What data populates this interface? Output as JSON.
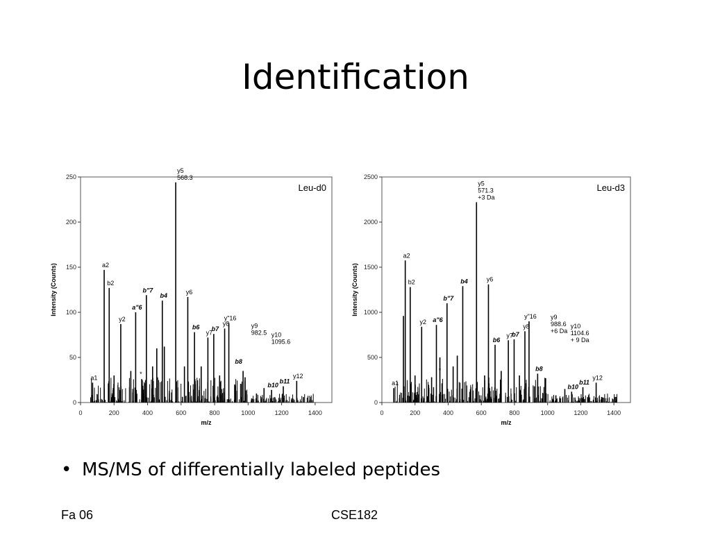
{
  "slide": {
    "title": "Identification",
    "bullet": "MS/MS of differentially labeled peptides",
    "footer_left": "Fa 06",
    "footer_center": "CSE182"
  },
  "chart_data": [
    {
      "type": "bar",
      "panel_label": "Leu-d0",
      "xlabel": "m/z",
      "ylabel": "Intensity (Counts)",
      "xlim": [
        0,
        1500
      ],
      "ylim": [
        0,
        250
      ],
      "xticks": [
        0,
        200,
        400,
        600,
        800,
        1000,
        1200,
        1400
      ],
      "yticks": [
        0,
        50,
        100,
        150,
        200,
        250
      ],
      "peaks": [
        {
          "x": 72,
          "y": 22
        },
        {
          "x": 141,
          "y": 147
        },
        {
          "x": 171,
          "y": 127
        },
        {
          "x": 240,
          "y": 87
        },
        {
          "x": 329,
          "y": 100
        },
        {
          "x": 393,
          "y": 119
        },
        {
          "x": 488,
          "y": 113
        },
        {
          "x": 568,
          "y": 244
        },
        {
          "x": 640,
          "y": 117
        },
        {
          "x": 680,
          "y": 78
        },
        {
          "x": 760,
          "y": 72
        },
        {
          "x": 795,
          "y": 76
        },
        {
          "x": 860,
          "y": 82
        },
        {
          "x": 885,
          "y": 88
        },
        {
          "x": 970,
          "y": 35
        },
        {
          "x": 982,
          "y": 28
        },
        {
          "x": 1095,
          "y": 16
        },
        {
          "x": 1140,
          "y": 14
        },
        {
          "x": 1210,
          "y": 18
        },
        {
          "x": 1290,
          "y": 24
        },
        {
          "x": 365,
          "y": 26
        },
        {
          "x": 455,
          "y": 60
        },
        {
          "x": 500,
          "y": 62
        },
        {
          "x": 620,
          "y": 40
        },
        {
          "x": 200,
          "y": 30
        },
        {
          "x": 300,
          "y": 35
        },
        {
          "x": 430,
          "y": 40
        },
        {
          "x": 720,
          "y": 40
        },
        {
          "x": 830,
          "y": 30
        },
        {
          "x": 920,
          "y": 20
        },
        {
          "x": 1050,
          "y": 10
        },
        {
          "x": 1330,
          "y": 6
        }
      ],
      "labels": [
        {
          "text": "a1",
          "x": 72,
          "y": 22,
          "style": "normal"
        },
        {
          "text": "a2",
          "x": 141,
          "y": 147,
          "style": "normal"
        },
        {
          "text": "b2",
          "x": 171,
          "y": 127,
          "style": "normal"
        },
        {
          "text": "y2",
          "x": 240,
          "y": 87,
          "style": "normal"
        },
        {
          "text": "a\"6",
          "x": 329,
          "y": 100,
          "style": "bold-italic"
        },
        {
          "text": "b\"7",
          "x": 393,
          "y": 119,
          "style": "bold-italic"
        },
        {
          "text": "b4",
          "x": 488,
          "y": 113,
          "style": "bold-italic"
        },
        {
          "text": "y5",
          "x": 568,
          "y": 244,
          "style": "normal"
        },
        {
          "text": "568.3",
          "x": 568,
          "y": 244,
          "style": "normal"
        },
        {
          "text": "y6",
          "x": 640,
          "y": 117,
          "style": "normal"
        },
        {
          "text": "b6",
          "x": 680,
          "y": 78,
          "style": "bold-italic"
        },
        {
          "text": "y7",
          "x": 760,
          "y": 72,
          "style": "normal"
        },
        {
          "text": "b7",
          "x": 795,
          "y": 76,
          "style": "bold-italic"
        },
        {
          "text": "y8",
          "x": 860,
          "y": 82,
          "style": "normal"
        },
        {
          "text": "y\"16",
          "x": 885,
          "y": 88,
          "style": "normal"
        },
        {
          "text": "b8",
          "x": 935,
          "y": 40,
          "style": "bold-italic"
        },
        {
          "text": "y9",
          "x": 1010,
          "y": 72,
          "style": "normal"
        },
        {
          "text": "982.5",
          "x": 1010,
          "y": 72,
          "style": "normal"
        },
        {
          "text": "y10",
          "x": 1130,
          "y": 62,
          "style": "normal"
        },
        {
          "text": "1095.6",
          "x": 1130,
          "y": 62,
          "style": "normal"
        },
        {
          "text": "b10",
          "x": 1140,
          "y": 14,
          "style": "bold-italic"
        },
        {
          "text": "b11",
          "x": 1210,
          "y": 18,
          "style": "bold-italic"
        },
        {
          "text": "y12",
          "x": 1290,
          "y": 24,
          "style": "normal"
        },
        {
          "text": "*",
          "x": 360,
          "y": 26,
          "style": "normal"
        }
      ]
    },
    {
      "type": "bar",
      "panel_label": "Leu-d3",
      "xlabel": "m/z",
      "ylabel": "Intensity (Counts)",
      "xlim": [
        0,
        1500
      ],
      "ylim": [
        0,
        2500
      ],
      "xticks": [
        0,
        200,
        400,
        600,
        800,
        1000,
        1200,
        1400
      ],
      "yticks": [
        0,
        500,
        1000,
        1500,
        2000,
        2500
      ],
      "peaks": [
        {
          "x": 72,
          "y": 160
        },
        {
          "x": 141,
          "y": 1575
        },
        {
          "x": 171,
          "y": 1280
        },
        {
          "x": 240,
          "y": 840
        },
        {
          "x": 329,
          "y": 860
        },
        {
          "x": 393,
          "y": 1100
        },
        {
          "x": 488,
          "y": 1290
        },
        {
          "x": 571,
          "y": 2220
        },
        {
          "x": 643,
          "y": 1310
        },
        {
          "x": 683,
          "y": 640
        },
        {
          "x": 763,
          "y": 690
        },
        {
          "x": 798,
          "y": 700
        },
        {
          "x": 863,
          "y": 790
        },
        {
          "x": 888,
          "y": 900
        },
        {
          "x": 940,
          "y": 320
        },
        {
          "x": 988,
          "y": 270
        },
        {
          "x": 1104,
          "y": 150
        },
        {
          "x": 1145,
          "y": 120
        },
        {
          "x": 1213,
          "y": 170
        },
        {
          "x": 1293,
          "y": 220
        },
        {
          "x": 130,
          "y": 960
        },
        {
          "x": 350,
          "y": 500
        },
        {
          "x": 455,
          "y": 520
        },
        {
          "x": 620,
          "y": 300
        },
        {
          "x": 200,
          "y": 300
        },
        {
          "x": 300,
          "y": 280
        },
        {
          "x": 430,
          "y": 400
        },
        {
          "x": 720,
          "y": 350
        },
        {
          "x": 830,
          "y": 300
        },
        {
          "x": 920,
          "y": 180
        },
        {
          "x": 1050,
          "y": 80
        },
        {
          "x": 1330,
          "y": 40
        }
      ],
      "labels": [
        {
          "text": "a1",
          "x": 72,
          "y": 160,
          "style": "normal"
        },
        {
          "text": "a2",
          "x": 141,
          "y": 1575,
          "style": "normal"
        },
        {
          "text": "b2",
          "x": 171,
          "y": 1280,
          "style": "normal"
        },
        {
          "text": "y2",
          "x": 240,
          "y": 840,
          "style": "normal"
        },
        {
          "text": "a\"6",
          "x": 329,
          "y": 860,
          "style": "bold-italic"
        },
        {
          "text": "b\"7",
          "x": 393,
          "y": 1100,
          "style": "bold-italic"
        },
        {
          "text": "b4",
          "x": 488,
          "y": 1290,
          "style": "bold-italic"
        },
        {
          "text": "y5",
          "x": 571,
          "y": 2220,
          "style": "normal"
        },
        {
          "text": "571.3",
          "x": 571,
          "y": 2220,
          "style": "normal"
        },
        {
          "text": "+3 Da",
          "x": 571,
          "y": 2220,
          "style": "normal"
        },
        {
          "text": "y6",
          "x": 643,
          "y": 1310,
          "style": "normal"
        },
        {
          "text": "b6",
          "x": 683,
          "y": 640,
          "style": "bold-italic"
        },
        {
          "text": "y7",
          "x": 763,
          "y": 690,
          "style": "normal"
        },
        {
          "text": "b7",
          "x": 798,
          "y": 700,
          "style": "bold-italic"
        },
        {
          "text": "y8",
          "x": 863,
          "y": 790,
          "style": "normal"
        },
        {
          "text": "y\"16",
          "x": 888,
          "y": 900,
          "style": "normal"
        },
        {
          "text": "b8",
          "x": 940,
          "y": 320,
          "style": "bold-italic"
        },
        {
          "text": "y9",
          "x": 1010,
          "y": 740,
          "style": "normal"
        },
        {
          "text": "988.6",
          "x": 1010,
          "y": 740,
          "style": "normal"
        },
        {
          "text": "+6 Da",
          "x": 1010,
          "y": 740,
          "style": "normal"
        },
        {
          "text": "y10",
          "x": 1130,
          "y": 640,
          "style": "normal"
        },
        {
          "text": "1104.6",
          "x": 1130,
          "y": 640,
          "style": "normal"
        },
        {
          "text": "+ 9 Da",
          "x": 1130,
          "y": 640,
          "style": "normal"
        },
        {
          "text": "b10",
          "x": 1145,
          "y": 120,
          "style": "bold-italic"
        },
        {
          "text": "b11",
          "x": 1213,
          "y": 170,
          "style": "bold-italic"
        },
        {
          "text": "y12",
          "x": 1293,
          "y": 220,
          "style": "normal"
        },
        {
          "text": "*",
          "x": 350,
          "y": 300,
          "style": "normal"
        }
      ]
    }
  ]
}
